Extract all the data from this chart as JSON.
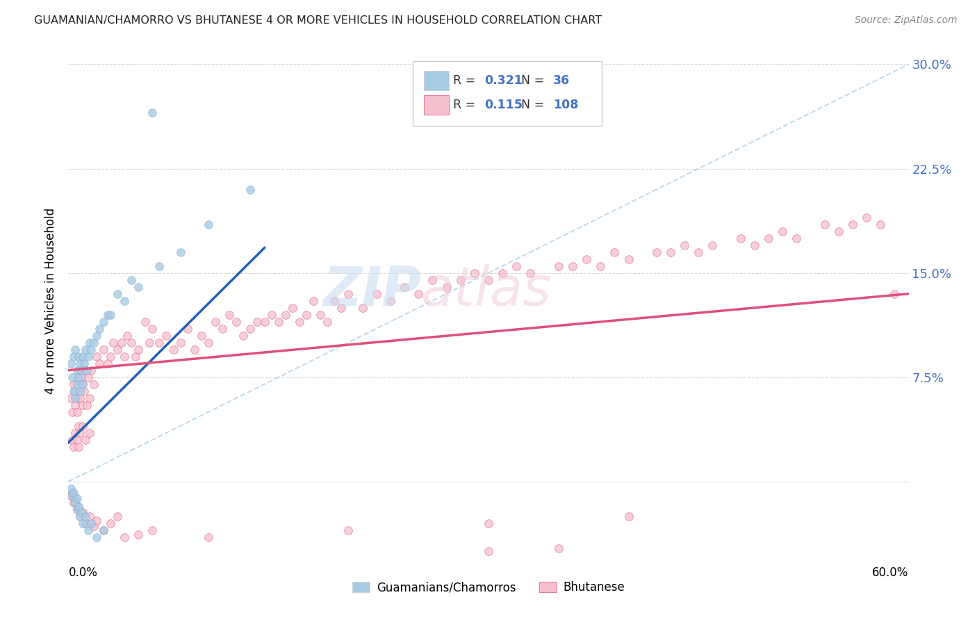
{
  "title": "GUAMANIAN/CHAMORRO VS BHUTANESE 4 OR MORE VEHICLES IN HOUSEHOLD CORRELATION CHART",
  "source": "Source: ZipAtlas.com",
  "ylabel": "4 or more Vehicles in Household",
  "xlim": [
    0.0,
    0.6
  ],
  "ylim": [
    -0.055,
    0.315
  ],
  "ytick_vals": [
    0.0,
    0.075,
    0.15,
    0.225,
    0.3
  ],
  "ytick_labels": [
    "",
    "7.5%",
    "15.0%",
    "22.5%",
    "30.0%"
  ],
  "color_blue_dot": "#a8cce4",
  "color_pink_dot": "#f5bfce",
  "color_blue_line": "#2060b0",
  "color_pink_line": "#e0507a",
  "color_pink_dot_edge": "#e0507a",
  "color_blue_dot_edge": "#7aadd4",
  "color_diag": "#b8d8f0",
  "r1": "0.321",
  "n1": "36",
  "r2": "0.115",
  "n2": "108",
  "legend_label1": "Guamanians/Chamorros",
  "legend_label2": "Bhutanese",
  "watermark_zip": "ZIP",
  "watermark_atlas": "atlas",
  "axis_tick_color": "#4472c4",
  "grid_color": "#d8d8d8",
  "background": "#ffffff",
  "guam_x": [
    0.002,
    0.003,
    0.004,
    0.004,
    0.005,
    0.005,
    0.006,
    0.006,
    0.007,
    0.007,
    0.008,
    0.008,
    0.009,
    0.01,
    0.01,
    0.011,
    0.012,
    0.013,
    0.014,
    0.015,
    0.016,
    0.018,
    0.02,
    0.022,
    0.025,
    0.028,
    0.03,
    0.035,
    0.04,
    0.045,
    0.05,
    0.065,
    0.08,
    0.1,
    0.13,
    0.06
  ],
  "guam_y": [
    0.085,
    0.075,
    0.09,
    0.065,
    0.095,
    0.06,
    0.08,
    0.07,
    0.09,
    0.075,
    0.085,
    0.065,
    0.08,
    0.09,
    0.07,
    0.085,
    0.095,
    0.08,
    0.09,
    0.1,
    0.095,
    0.1,
    0.105,
    0.11,
    0.115,
    0.12,
    0.12,
    0.135,
    0.13,
    0.145,
    0.14,
    0.155,
    0.165,
    0.185,
    0.21,
    0.265
  ],
  "bhut_x": [
    0.002,
    0.003,
    0.004,
    0.005,
    0.005,
    0.006,
    0.006,
    0.007,
    0.007,
    0.008,
    0.009,
    0.01,
    0.01,
    0.011,
    0.012,
    0.013,
    0.014,
    0.015,
    0.016,
    0.018,
    0.02,
    0.022,
    0.025,
    0.028,
    0.03,
    0.032,
    0.035,
    0.038,
    0.04,
    0.042,
    0.045,
    0.048,
    0.05,
    0.055,
    0.058,
    0.06,
    0.065,
    0.07,
    0.075,
    0.08,
    0.085,
    0.09,
    0.095,
    0.1,
    0.105,
    0.11,
    0.115,
    0.12,
    0.125,
    0.13,
    0.135,
    0.14,
    0.145,
    0.15,
    0.155,
    0.16,
    0.165,
    0.17,
    0.175,
    0.18,
    0.185,
    0.19,
    0.195,
    0.2,
    0.21,
    0.22,
    0.23,
    0.24,
    0.25,
    0.26,
    0.27,
    0.28,
    0.29,
    0.3,
    0.31,
    0.32,
    0.33,
    0.35,
    0.36,
    0.37,
    0.38,
    0.39,
    0.4,
    0.42,
    0.43,
    0.44,
    0.45,
    0.46,
    0.48,
    0.49,
    0.5,
    0.51,
    0.52,
    0.54,
    0.55,
    0.56,
    0.57,
    0.58,
    0.59,
    0.003,
    0.004,
    0.005,
    0.006,
    0.007,
    0.008,
    0.01,
    0.012,
    0.015
  ],
  "bhut_y": [
    0.06,
    0.05,
    0.07,
    0.055,
    0.065,
    0.06,
    0.05,
    0.08,
    0.04,
    0.06,
    0.075,
    0.07,
    0.055,
    0.065,
    0.08,
    0.055,
    0.075,
    0.06,
    0.08,
    0.07,
    0.09,
    0.085,
    0.095,
    0.085,
    0.09,
    0.1,
    0.095,
    0.1,
    0.09,
    0.105,
    0.1,
    0.09,
    0.095,
    0.115,
    0.1,
    0.11,
    0.1,
    0.105,
    0.095,
    0.1,
    0.11,
    0.095,
    0.105,
    0.1,
    0.115,
    0.11,
    0.12,
    0.115,
    0.105,
    0.11,
    0.115,
    0.115,
    0.12,
    0.115,
    0.12,
    0.125,
    0.115,
    0.12,
    0.13,
    0.12,
    0.115,
    0.13,
    0.125,
    0.135,
    0.125,
    0.135,
    0.13,
    0.14,
    0.135,
    0.145,
    0.14,
    0.145,
    0.15,
    0.145,
    0.15,
    0.155,
    0.15,
    0.155,
    0.155,
    0.16,
    0.155,
    0.165,
    0.16,
    0.165,
    0.165,
    0.17,
    0.165,
    0.17,
    0.175,
    0.17,
    0.175,
    0.18,
    0.175,
    0.185,
    0.18,
    0.185,
    0.19,
    0.185,
    0.135,
    0.03,
    0.025,
    0.035,
    0.03,
    0.025,
    0.035,
    0.04,
    0.03,
    0.035
  ],
  "guam_extra_x": [
    0.002,
    0.003,
    0.004,
    0.005,
    0.006,
    0.006,
    0.007,
    0.008,
    0.009,
    0.01,
    0.012,
    0.014,
    0.016,
    0.02,
    0.025
  ],
  "guam_extra_y": [
    -0.005,
    -0.01,
    -0.008,
    -0.015,
    -0.012,
    -0.02,
    -0.018,
    -0.025,
    -0.022,
    -0.03,
    -0.025,
    -0.035,
    -0.03,
    -0.04,
    -0.035
  ],
  "bhut_extra_x": [
    0.002,
    0.003,
    0.004,
    0.005,
    0.006,
    0.007,
    0.008,
    0.01,
    0.012,
    0.015,
    0.018,
    0.02,
    0.025,
    0.03,
    0.035,
    0.04,
    0.05,
    0.06,
    0.1,
    0.2,
    0.3,
    0.4,
    0.3,
    0.35
  ],
  "bhut_extra_y": [
    -0.01,
    -0.008,
    -0.015,
    -0.012,
    -0.02,
    -0.018,
    -0.025,
    -0.022,
    -0.03,
    -0.025,
    -0.032,
    -0.028,
    -0.035,
    -0.03,
    -0.025,
    -0.04,
    -0.038,
    -0.035,
    -0.04,
    -0.035,
    -0.03,
    -0.025,
    -0.05,
    -0.048
  ]
}
